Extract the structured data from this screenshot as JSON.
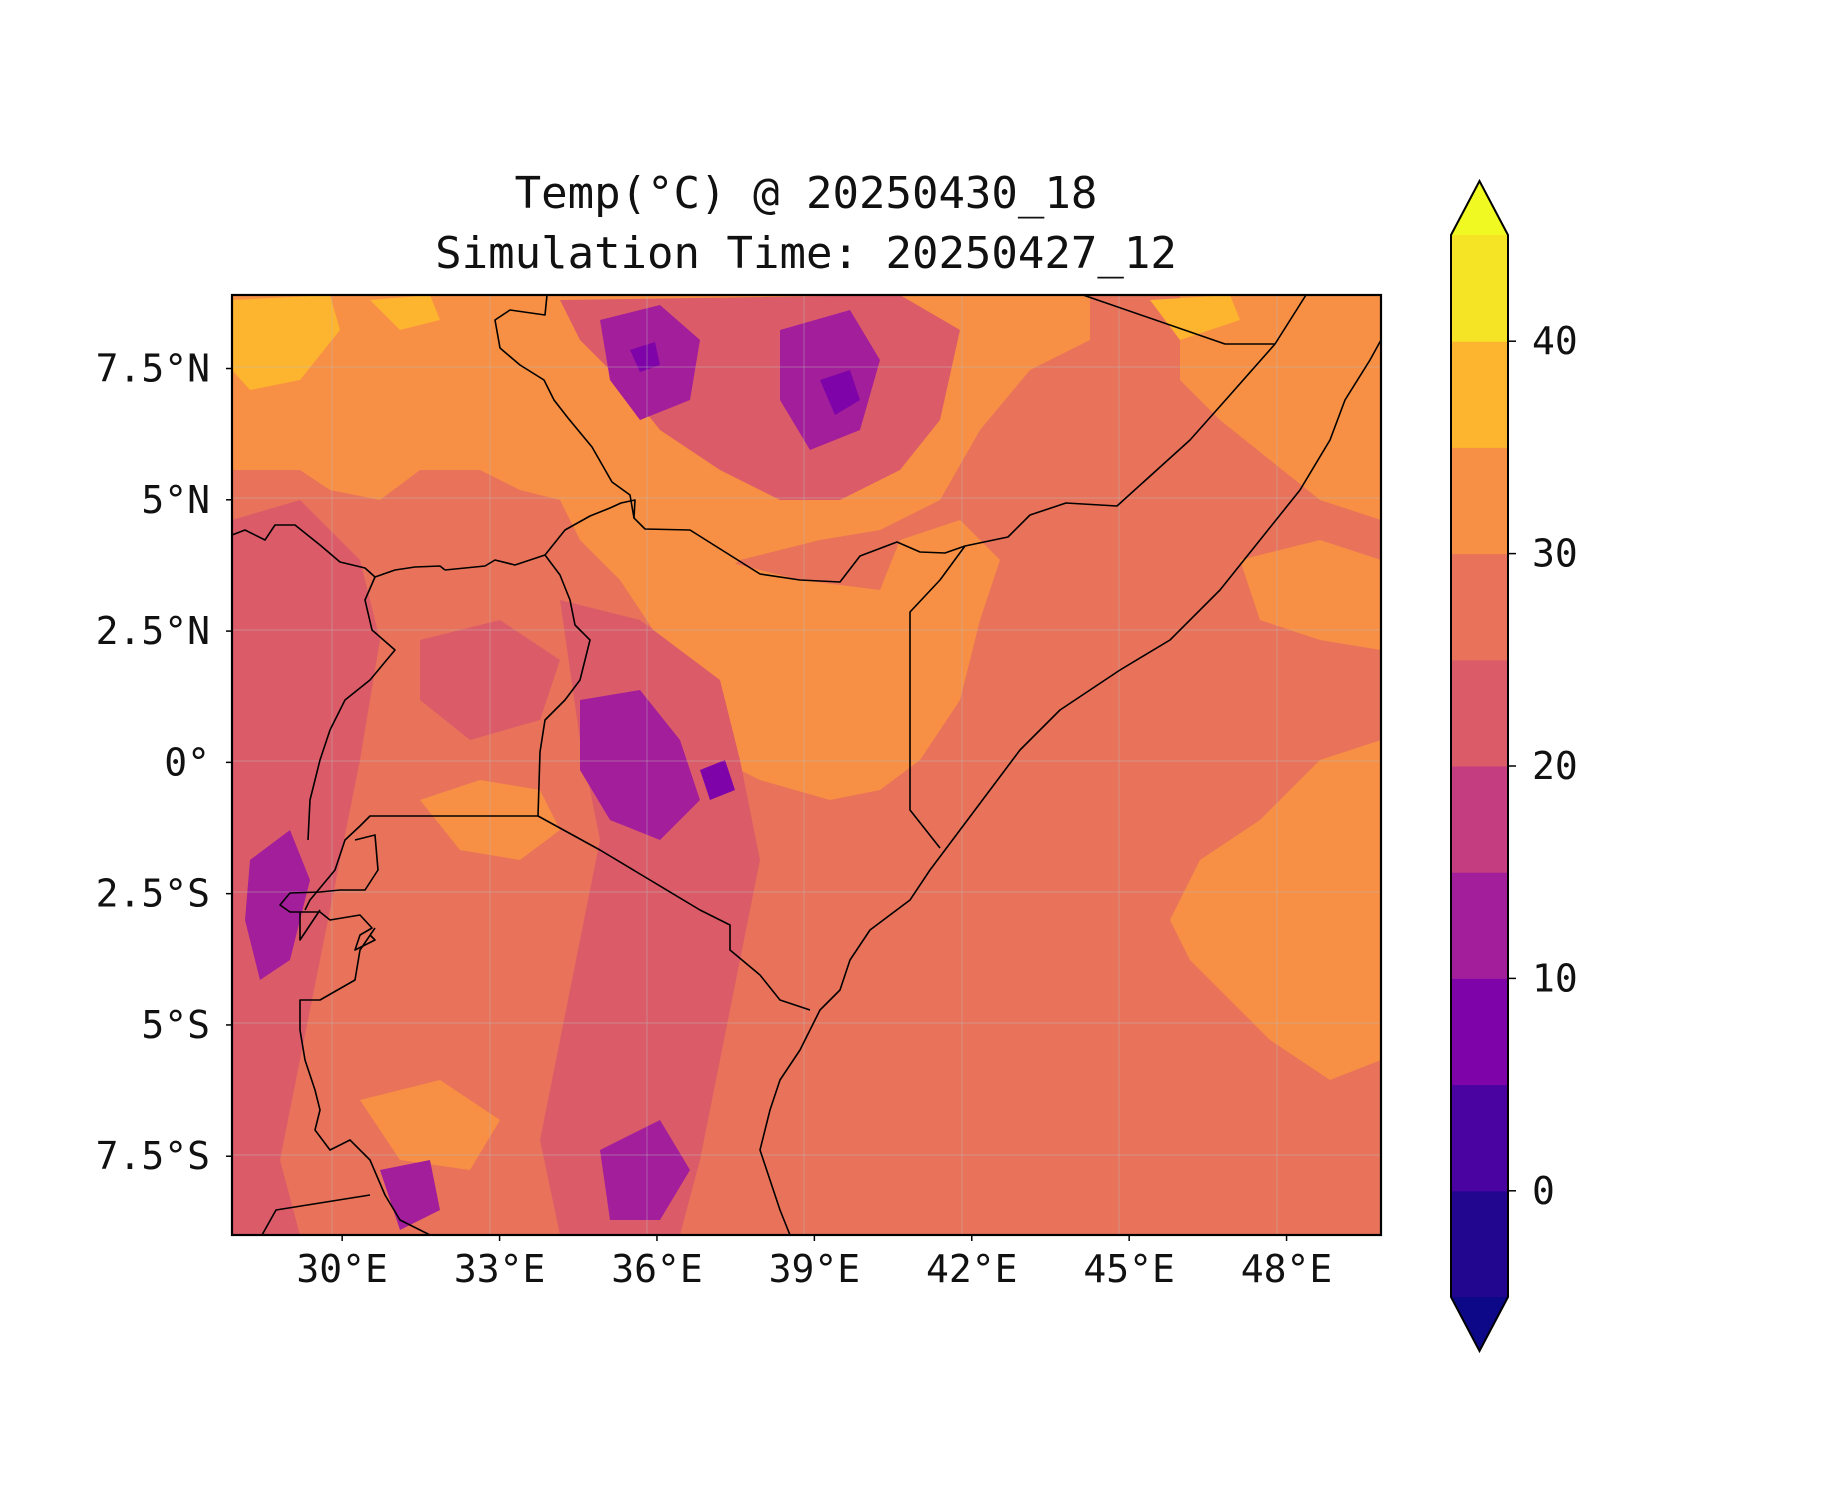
{
  "title_line1": "Temp(°C) @ 20250430_18",
  "title_line2": "Simulation Time: 20250427_12",
  "map": {
    "lon_range": [
      27.9,
      49.8
    ],
    "lat_range": [
      -9.0,
      8.9
    ],
    "x_ticks": [
      {
        "lon": 30,
        "label": "30°E"
      },
      {
        "lon": 33,
        "label": "33°E"
      },
      {
        "lon": 36,
        "label": "36°E"
      },
      {
        "lon": 39,
        "label": "39°E"
      },
      {
        "lon": 42,
        "label": "42°E"
      },
      {
        "lon": 45,
        "label": "45°E"
      },
      {
        "lon": 48,
        "label": "48°E"
      }
    ],
    "y_ticks": [
      {
        "lat": 7.5,
        "label": "7.5°N"
      },
      {
        "lat": 5,
        "label": "5°N"
      },
      {
        "lat": 2.5,
        "label": "2.5°N"
      },
      {
        "lat": 0,
        "label": "0°"
      },
      {
        "lat": -2.5,
        "label": "2.5°S"
      },
      {
        "lat": -5,
        "label": "5°S"
      },
      {
        "lat": -7.5,
        "label": "7.5°S"
      }
    ],
    "gridlines": true,
    "background_color": "#e8735a"
  },
  "colorbar": {
    "levels": [
      -5,
      0,
      5,
      10,
      15,
      20,
      25,
      30,
      35,
      40,
      45
    ],
    "colors": [
      "#220690",
      "#4a02a0",
      "#7e03a8",
      "#a31e9a",
      "#c33d80",
      "#db5c68",
      "#e8735a",
      "#f79044",
      "#fdb42f",
      "#f5e326"
    ],
    "under_color": "#0d0887",
    "over_color": "#f0f921",
    "ticks": [
      {
        "value": 0,
        "label": "0"
      },
      {
        "value": 10,
        "label": "10"
      },
      {
        "value": 20,
        "label": "20"
      },
      {
        "value": 30,
        "label": "30"
      },
      {
        "value": 40,
        "label": "40"
      }
    ]
  }
}
